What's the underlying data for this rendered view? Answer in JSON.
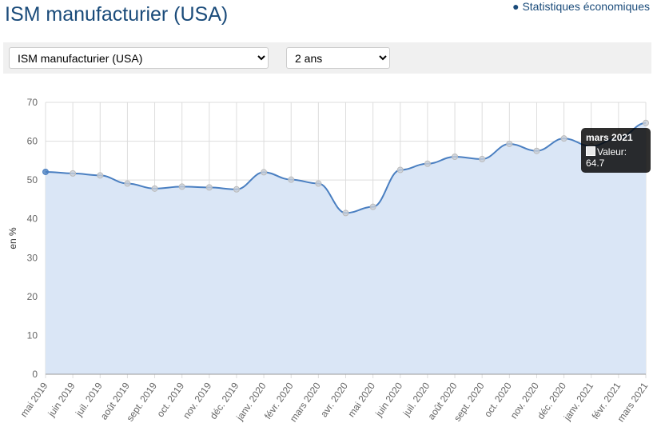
{
  "header": {
    "title": "ISM manufacturier (USA)",
    "link": "Statistiques économiques"
  },
  "controls": {
    "indicator": "ISM manufacturier (USA)",
    "period": "2 ans"
  },
  "tooltip": {
    "label": "mars 2021",
    "value_label": "Valeur: 64.7"
  },
  "colors": {
    "line": "#4a7fc1",
    "fill": "#dae6f6",
    "title": "#1a4b7a"
  },
  "chart_data": {
    "type": "area",
    "title": "",
    "xlabel": "",
    "ylabel": "en %",
    "ylim": [
      0,
      70
    ],
    "yticks": [
      0,
      10,
      20,
      30,
      40,
      50,
      60,
      70
    ],
    "grid": true,
    "categories": [
      "mai 2019",
      "juin 2019",
      "juil. 2019",
      "août 2019",
      "sept. 2019",
      "oct. 2019",
      "nov. 2019",
      "déc. 2019",
      "janv. 2020",
      "févr. 2020",
      "mars 2020",
      "avr. 2020",
      "mai 2020",
      "juin 2020",
      "juil. 2020",
      "août 2020",
      "sept. 2020",
      "oct. 2020",
      "nov. 2020",
      "déc. 2020",
      "janv. 2021",
      "févr. 2021",
      "mars 2021"
    ],
    "series": [
      {
        "name": "Valeur",
        "values": [
          52.1,
          51.7,
          51.2,
          49.1,
          47.8,
          48.3,
          48.1,
          47.6,
          52.0,
          50.1,
          49.1,
          41.5,
          43.1,
          52.6,
          54.2,
          56.0,
          55.4,
          59.3,
          57.5,
          60.7,
          58.7,
          60.8,
          64.7
        ]
      }
    ]
  }
}
